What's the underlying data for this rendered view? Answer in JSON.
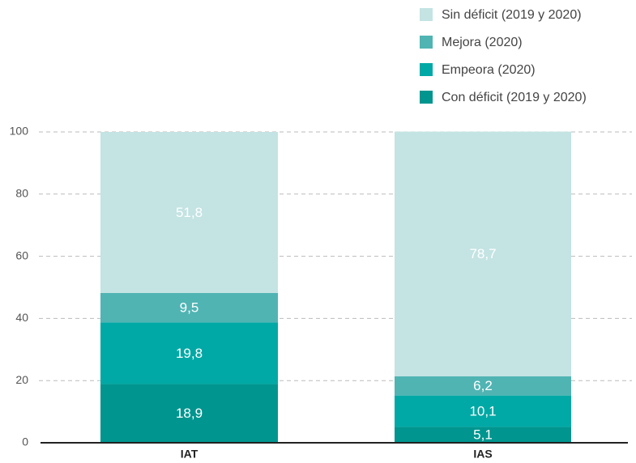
{
  "chart_data": {
    "type": "stacked_bar",
    "categories": [
      "IAT",
      "IAS"
    ],
    "series": [
      {
        "name": "Con déficit (2019 y 2020)",
        "color": "#00958f",
        "values": [
          18.9,
          5.1
        ],
        "value_labels": [
          "18,9",
          "5,1"
        ]
      },
      {
        "name": "Empeora (2020)",
        "color": "#00a9a5",
        "values": [
          19.8,
          10.1
        ],
        "value_labels": [
          "19,8",
          "10,1"
        ]
      },
      {
        "name": "Mejora (2020)",
        "color": "#50b4b3",
        "values": [
          9.5,
          6.2
        ],
        "value_labels": [
          "9,5",
          "6,2"
        ]
      },
      {
        "name": "Sin déficit (2019 y 2020)",
        "color": "#c4e3e3",
        "values": [
          51.8,
          78.7
        ],
        "value_labels": [
          "51,8",
          "78,7"
        ]
      }
    ],
    "ylim": [
      0,
      100
    ],
    "yticks": [
      0,
      20,
      40,
      60,
      80,
      100
    ],
    "grid": true
  }
}
